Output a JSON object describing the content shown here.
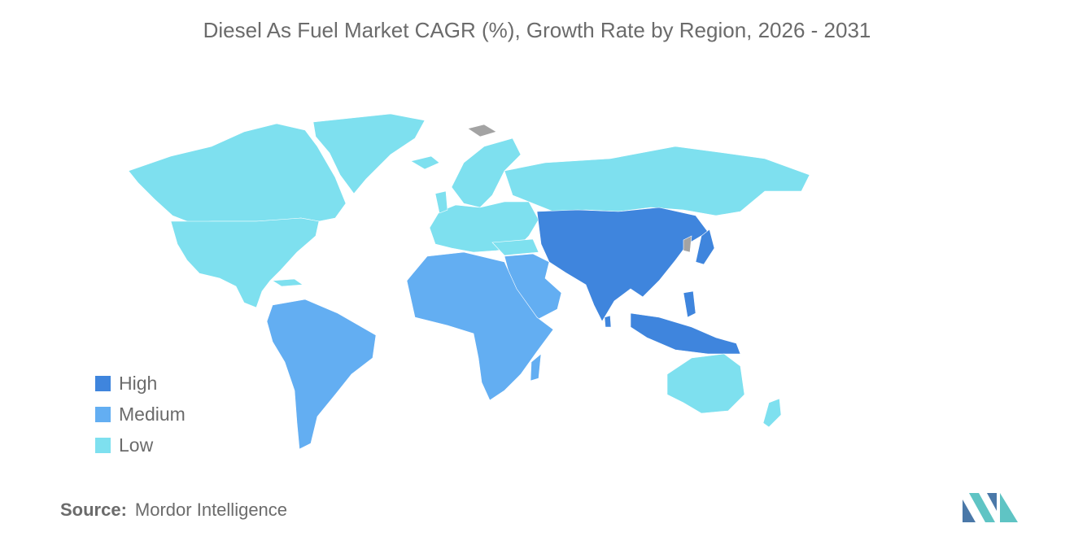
{
  "title": "Diesel As Fuel Market CAGR (%), Growth Rate by Region, 2026 - 2031",
  "legend": {
    "items": [
      {
        "label": "High",
        "color": "#3f85dd"
      },
      {
        "label": "Medium",
        "color": "#63aef2"
      },
      {
        "label": "Low",
        "color": "#7ee0ef"
      }
    ]
  },
  "map": {
    "no_data_color": "#a3a3a3",
    "regions": [
      {
        "region": "North America",
        "level": "Low"
      },
      {
        "region": "Europe",
        "level": "Low"
      },
      {
        "region": "Russia",
        "level": "Low"
      },
      {
        "region": "Australia and New Zealand",
        "level": "Low"
      },
      {
        "region": "South America",
        "level": "Medium"
      },
      {
        "region": "Middle East",
        "level": "Medium"
      },
      {
        "region": "Africa",
        "level": "Medium"
      },
      {
        "region": "Asia-Pacific",
        "level": "High"
      }
    ]
  },
  "source": {
    "label": "Source:",
    "value": "Mordor Intelligence"
  },
  "logo": {
    "icon": "mordor-intelligence-logo-icon",
    "colors": [
      "#4a78a8",
      "#5fc4c4"
    ]
  }
}
